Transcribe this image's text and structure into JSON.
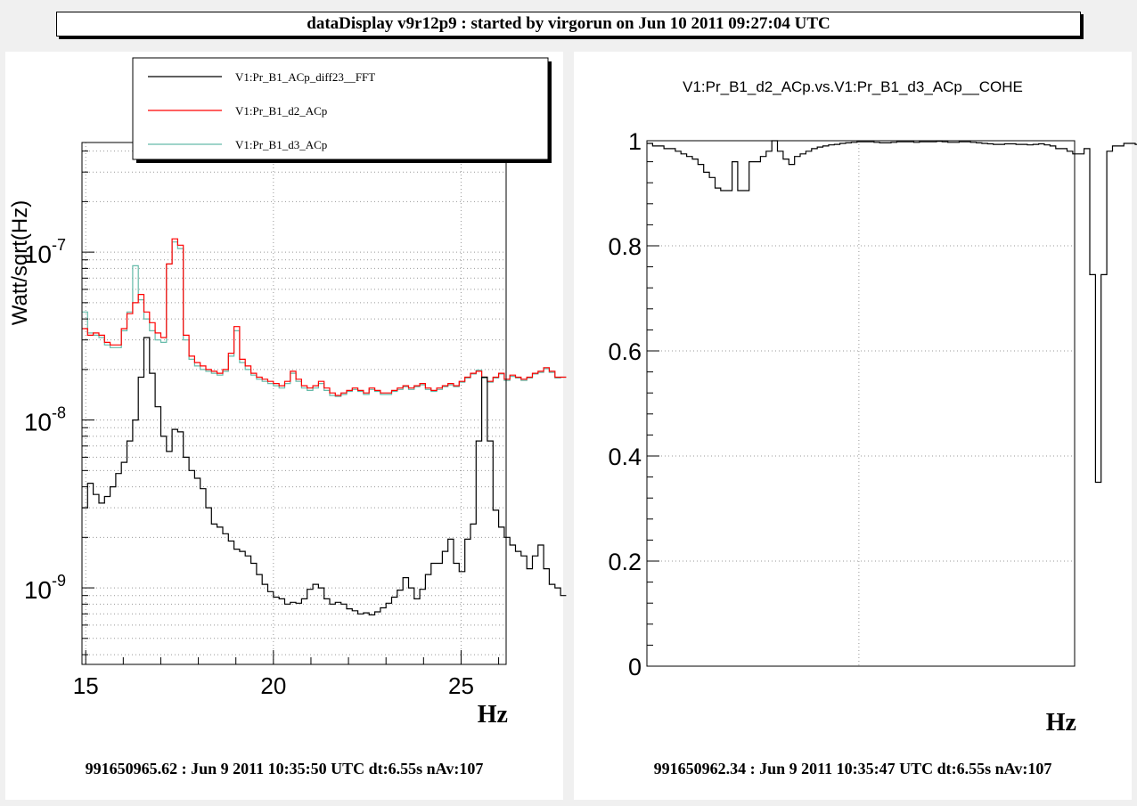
{
  "window_title": "dataDisplay v9r12p9 : started by virgorun on Jun 10 2011 09:27:04 UTC",
  "colors": {
    "fft": "#000000",
    "d2": "#ff0000",
    "d3": "#66bbaa",
    "grid": "#999999",
    "pad_bg": "#ffffff",
    "canvas_bg": "#f0f0f0"
  },
  "chart_data": [
    {
      "type": "line",
      "style": "step",
      "yscale": "log",
      "title": "",
      "xlabel": "Hz",
      "ylabel": "Watt/sqrt(Hz)",
      "xlim": [
        14.9,
        26.2
      ],
      "ylim": [
        3.5e-10,
        4.5e-07
      ],
      "xticks": [
        15,
        20,
        25
      ],
      "xtick_labels": [
        "15",
        "20",
        "25"
      ],
      "yticks": [
        1e-09,
        1e-08,
        1e-07
      ],
      "ytick_labels": [
        "10",
        "10",
        "10"
      ],
      "ytick_exponents": [
        "-9",
        "-8",
        "-7"
      ],
      "grid": true,
      "legend_position": "top",
      "footer": "991650965.62 : Jun  9 2011 10:35:50 UTC dt:6.55s nAv:107",
      "bin_width": 0.15,
      "x_start": 14.9,
      "series": [
        {
          "name": "V1:Pr_B1_ACp_diff23__FFT",
          "color": "#000000",
          "values": [
            3e-09,
            4.2e-09,
            3.6e-09,
            3.2e-09,
            3.5e-09,
            4e-09,
            4.8e-09,
            5.6e-09,
            7.5e-09,
            1e-08,
            1.8e-08,
            3.1e-08,
            1.9e-08,
            1.2e-08,
            8e-09,
            6.5e-09,
            8.8e-09,
            8.5e-09,
            6e-09,
            5e-09,
            4.5e-09,
            3.9e-09,
            3e-09,
            2.4e-09,
            2.3e-09,
            2.1e-09,
            1.9e-09,
            1.7e-09,
            1.65e-09,
            1.55e-09,
            1.4e-09,
            1.2e-09,
            1.05e-09,
            9.5e-10,
            8.8e-10,
            8.6e-10,
            8e-10,
            8.2e-10,
            8.1e-10,
            8.6e-10,
            9.8e-10,
            1.05e-09,
            1e-09,
            8.6e-10,
            8e-10,
            8.2e-10,
            8e-10,
            7.5e-10,
            7.3e-10,
            7e-10,
            7.1e-10,
            6.9e-10,
            7.2e-10,
            7.6e-10,
            8.1e-10,
            8.8e-10,
            9.7e-10,
            1.15e-09,
            1e-09,
            8.6e-10,
            9.8e-10,
            1.2e-09,
            1.4e-09,
            1.4e-09,
            1.65e-09,
            1.95e-09,
            1.4e-09,
            1.25e-09,
            1.95e-09,
            2.4e-09,
            7.5e-09,
            1.8e-08,
            7.5e-09,
            2.9e-09,
            2.3e-09,
            2e-09,
            1.8e-09,
            1.65e-09,
            1.55e-09,
            1.3e-09,
            1.55e-09,
            1.8e-09,
            1.3e-09,
            1.05e-09,
            1e-09,
            9e-10
          ]
        },
        {
          "name": "V1:Pr_B1_d2_ACp",
          "color": "#ff0000",
          "values": [
            3.5e-08,
            3.2e-08,
            3.3e-08,
            3.2e-08,
            2.9e-08,
            2.8e-08,
            2.8e-08,
            3.5e-08,
            4.3e-08,
            5e-08,
            5.6e-08,
            4.4e-08,
            3.8e-08,
            3.3e-08,
            3.1e-08,
            8.5e-08,
            1.2e-07,
            1.1e-07,
            3.2e-08,
            2.4e-08,
            2.2e-08,
            2.1e-08,
            2e-08,
            1.95e-08,
            1.9e-08,
            2e-08,
            2.5e-08,
            3.6e-08,
            2.3e-08,
            2.1e-08,
            1.9e-08,
            1.8e-08,
            1.75e-08,
            1.7e-08,
            1.65e-08,
            1.6e-08,
            1.7e-08,
            1.95e-08,
            1.75e-08,
            1.6e-08,
            1.55e-08,
            1.6e-08,
            1.7e-08,
            1.55e-08,
            1.45e-08,
            1.4e-08,
            1.45e-08,
            1.5e-08,
            1.55e-08,
            1.5e-08,
            1.45e-08,
            1.55e-08,
            1.5e-08,
            1.45e-08,
            1.45e-08,
            1.5e-08,
            1.55e-08,
            1.6e-08,
            1.55e-08,
            1.6e-08,
            1.65e-08,
            1.55e-08,
            1.5e-08,
            1.55e-08,
            1.6e-08,
            1.65e-08,
            1.6e-08,
            1.7e-08,
            1.8e-08,
            1.9e-08,
            1.95e-08,
            1.8e-08,
            1.7e-08,
            1.8e-08,
            1.9e-08,
            1.75e-08,
            1.85e-08,
            1.8e-08,
            1.75e-08,
            1.8e-08,
            1.9e-08,
            1.95e-08,
            2.05e-08,
            1.95e-08,
            1.8e-08,
            1.8e-08
          ]
        },
        {
          "name": "V1:Pr_B1_d3_ACp",
          "color": "#66bbaa",
          "values": [
            4.4e-08,
            3.3e-08,
            3.2e-08,
            3.1e-08,
            2.8e-08,
            2.7e-08,
            2.7e-08,
            3.4e-08,
            4.4e-08,
            8.3e-08,
            5.2e-08,
            4e-08,
            3.4e-08,
            3e-08,
            2.9e-08,
            8.5e-08,
            1.15e-07,
            1.05e-07,
            3e-08,
            2.3e-08,
            2.1e-08,
            2e-08,
            1.95e-08,
            1.9e-08,
            1.85e-08,
            1.95e-08,
            2.4e-08,
            3.4e-08,
            2.2e-08,
            2e-08,
            1.85e-08,
            1.75e-08,
            1.7e-08,
            1.65e-08,
            1.6e-08,
            1.55e-08,
            1.65e-08,
            1.9e-08,
            1.7e-08,
            1.55e-08,
            1.5e-08,
            1.55e-08,
            1.65e-08,
            1.5e-08,
            1.4e-08,
            1.38e-08,
            1.42e-08,
            1.48e-08,
            1.52e-08,
            1.48e-08,
            1.42e-08,
            1.52e-08,
            1.48e-08,
            1.42e-08,
            1.42e-08,
            1.48e-08,
            1.52e-08,
            1.58e-08,
            1.52e-08,
            1.58e-08,
            1.62e-08,
            1.52e-08,
            1.48e-08,
            1.52e-08,
            1.58e-08,
            1.62e-08,
            1.58e-08,
            1.68e-08,
            1.78e-08,
            1.88e-08,
            1.98e-08,
            1.78e-08,
            1.68e-08,
            1.78e-08,
            1.88e-08,
            1.72e-08,
            1.82e-08,
            1.78e-08,
            1.72e-08,
            1.78e-08,
            1.88e-08,
            1.92e-08,
            2.02e-08,
            1.92e-08,
            1.78e-08,
            1.8e-08
          ]
        }
      ]
    },
    {
      "type": "line",
      "style": "step",
      "title": "V1:Pr_B1_d2_ACp.vs.V1:Pr_B1_d3_ACp__COHE",
      "xlabel": "Hz",
      "ylabel": "",
      "xlim": [
        14.9,
        26.2
      ],
      "ylim": [
        0,
        1
      ],
      "yticks": [
        0,
        0.2,
        0.4,
        0.6,
        0.8,
        1
      ],
      "ytick_labels": [
        "0",
        "0.2",
        "0.4",
        "0.6",
        "0.8",
        "1"
      ],
      "grid": true,
      "footer": "991650962.34 : Jun  9 2011 10:35:47 UTC dt:6.55s nAv:107",
      "bin_width": 0.15,
      "x_start": 14.9,
      "series": [
        {
          "color": "#000000",
          "values": [
            0.995,
            0.99,
            0.99,
            0.985,
            0.985,
            0.98,
            0.975,
            0.97,
            0.965,
            0.955,
            0.94,
            0.93,
            0.91,
            0.905,
            0.905,
            0.96,
            0.905,
            0.905,
            0.96,
            0.96,
            0.97,
            0.98,
            1.0,
            0.98,
            0.965,
            0.955,
            0.97,
            0.975,
            0.98,
            0.985,
            0.988,
            0.99,
            0.992,
            0.993,
            0.995,
            0.996,
            0.997,
            0.998,
            0.998,
            0.998,
            0.997,
            0.996,
            0.996,
            0.997,
            0.998,
            0.998,
            0.998,
            0.997,
            0.998,
            0.998,
            0.998,
            0.999,
            0.998,
            0.997,
            0.997,
            0.998,
            0.998,
            0.997,
            0.996,
            0.995,
            0.994,
            0.993,
            0.993,
            0.994,
            0.994,
            0.993,
            0.993,
            0.992,
            0.993,
            0.994,
            0.992,
            0.99,
            0.985,
            0.985,
            0.98,
            0.975,
            0.975,
            0.985,
            0.745,
            0.35,
            0.745,
            0.98,
            0.99,
            0.99,
            0.995,
            0.995,
            0.993,
            0.99,
            0.993,
            0.995,
            0.997,
            0.998,
            0.997,
            0.995,
            0.997,
            0.998
          ]
        }
      ]
    }
  ]
}
